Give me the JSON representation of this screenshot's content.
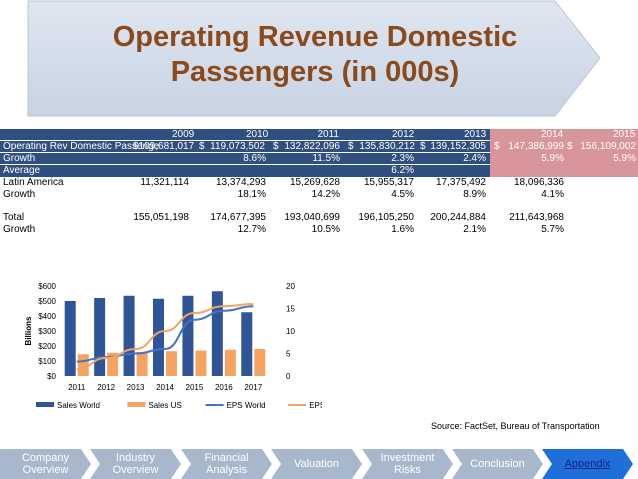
{
  "title": "Operating Revenue Domestic Passengers (in 000s)",
  "table": {
    "years": [
      "2009",
      "2010",
      "2011",
      "2012",
      "2013",
      "2014",
      "2015"
    ],
    "rows": [
      {
        "label": "Operating Rev Domestic Passenge",
        "cells": [
          "$109,681,017",
          "$",
          "119,073,502",
          "$",
          "132,822,096",
          "$",
          "135,830,212",
          "$",
          "139,152,305",
          "$",
          "147,386,999",
          "$",
          "156,109,002"
        ]
      },
      {
        "label": "Growth",
        "cells": [
          "8.6%",
          "11.5%",
          "2.3%",
          "2.4%",
          "5.9%",
          "5.9%"
        ]
      },
      {
        "label": "Average",
        "cells": [
          "6.2%"
        ]
      },
      {
        "label": "Latin America",
        "cells": [
          "11,321,114",
          "13,374,293",
          "15,269,628",
          "15,955,317",
          "17,375,492",
          "18,096,336"
        ]
      },
      {
        "label": "Growth",
        "cells": [
          "18.1%",
          "14.2%",
          "4.5%",
          "8.9%",
          "4.1%"
        ]
      },
      {
        "label": "Total",
        "cells": [
          "155,051,198",
          "174,677,395",
          "193,040,699",
          "196,105,250",
          "200,244,884",
          "211,643,968"
        ]
      },
      {
        "label": "Growth",
        "cells": [
          "12.7%",
          "10.5%",
          "1.6%",
          "2.1%",
          "5.7%"
        ]
      }
    ]
  },
  "chart_data": {
    "type": "bar",
    "categories": [
      "2011",
      "2012",
      "2013",
      "2014",
      "2015",
      "2016",
      "2017"
    ],
    "ylabel": "Billions",
    "ylim": [
      0,
      600
    ],
    "y_ticks": [
      "$0",
      "$100",
      "$200",
      "$300",
      "$400",
      "$500",
      "$600"
    ],
    "y2lim": [
      0,
      20
    ],
    "y2_ticks": [
      "0",
      "5",
      "10",
      "15",
      "20"
    ],
    "grid": false,
    "legend": "bottom",
    "series": [
      {
        "name": "Sales World",
        "kind": "bar",
        "axis": "left",
        "color": "#2f5597",
        "values": [
          500,
          520,
          535,
          515,
          535,
          565,
          425
        ]
      },
      {
        "name": "Sales US",
        "kind": "bar",
        "axis": "left",
        "color": "#f4a460",
        "values": [
          145,
          155,
          160,
          165,
          170,
          175,
          180
        ]
      },
      {
        "name": "EPS World",
        "kind": "line",
        "axis": "right",
        "color": "#4472c4",
        "values": [
          3.2,
          4.2,
          5.0,
          6.0,
          12.5,
          14.5,
          15.5
        ]
      },
      {
        "name": "EPS US",
        "kind": "line",
        "axis": "right",
        "color": "#f4a460",
        "values": [
          1.5,
          4.0,
          6.0,
          10.0,
          14.0,
          15.5,
          16.0
        ]
      }
    ]
  },
  "source": "Source: FactSet, Bureau of Transportation",
  "nav": {
    "items": [
      {
        "label": "Company Overview"
      },
      {
        "label": "Industry Overview"
      },
      {
        "label": "Financial Analysis"
      },
      {
        "label": "Valuation"
      },
      {
        "label": "Investment Risks"
      },
      {
        "label": "Conclusion"
      },
      {
        "label": "Appendix"
      }
    ],
    "colors": {
      "inactive": "#a8b8cc",
      "active": "#1e6fd9",
      "active_text": "#1a237e"
    }
  }
}
